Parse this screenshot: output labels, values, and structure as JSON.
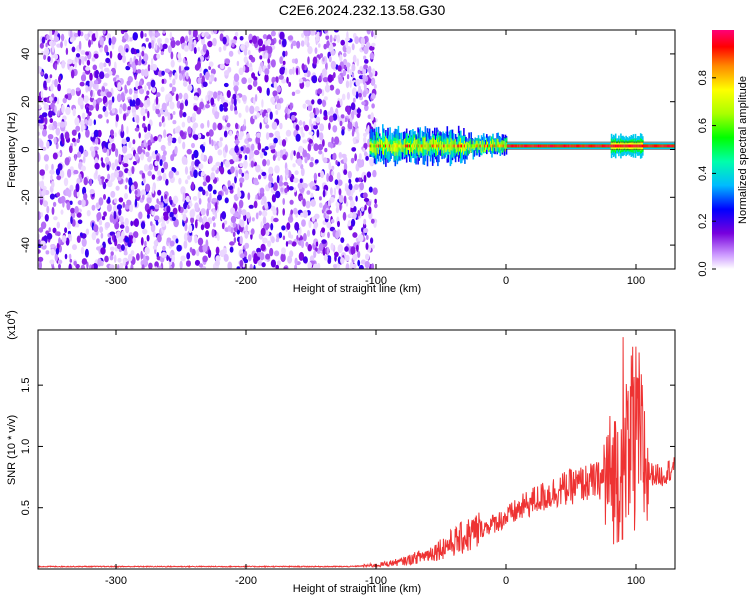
{
  "figure": {
    "title": "C2E6.2024.232.13.58.G30"
  },
  "chart_data": [
    {
      "type": "heatmap",
      "xlabel": "Height of straight line (km)",
      "ylabel": "Frequency (Hz)",
      "xlim": [
        -360,
        130
      ],
      "ylim": [
        -50,
        50
      ],
      "x_ticks": [
        -300,
        -200,
        -100,
        0,
        100
      ],
      "y_ticks": [
        -40,
        -20,
        0,
        20,
        40
      ],
      "colorbar": {
        "label": "Normalized spectral amplitude",
        "range": [
          0,
          1
        ],
        "ticks": [
          "0.0",
          "0.2",
          "0.4",
          "0.6",
          "0.8"
        ]
      },
      "regions": [
        {
          "x_range": [
            -360,
            -100
          ],
          "description_values": {
            "amplitude_range": [
              0.02,
              0.15
            ]
          }
        },
        {
          "x_range": [
            -105,
            130
          ],
          "center_freq_hz": 1.5,
          "amplitude_range": [
            0.2,
            1.0
          ]
        }
      ]
    },
    {
      "type": "line",
      "xlabel": "Height of straight line (km)",
      "ylabel": "SNR (10 * v/v)",
      "y_multiplier": "(x10",
      "y_multiplier_exp": "4",
      "y_multiplier_close": ")",
      "xlim": [
        -360,
        130
      ],
      "ylim": [
        0,
        1.95
      ],
      "x_ticks": [
        -300,
        -200,
        -100,
        0,
        100
      ],
      "y_ticks": [
        "0.5",
        "1.0",
        "1.5"
      ],
      "series": [
        {
          "color": "#ee3333",
          "x": [
            -360,
            -300,
            -200,
            -120,
            -100,
            -80,
            -60,
            -40,
            -20,
            0,
            20,
            40,
            60,
            80,
            90,
            100,
            110,
            120,
            130
          ],
          "y": [
            0.02,
            0.02,
            0.02,
            0.02,
            0.03,
            0.06,
            0.12,
            0.22,
            0.32,
            0.42,
            0.55,
            0.64,
            0.7,
            0.74,
            0.85,
            1.1,
            0.78,
            0.76,
            0.85
          ]
        }
      ]
    }
  ]
}
